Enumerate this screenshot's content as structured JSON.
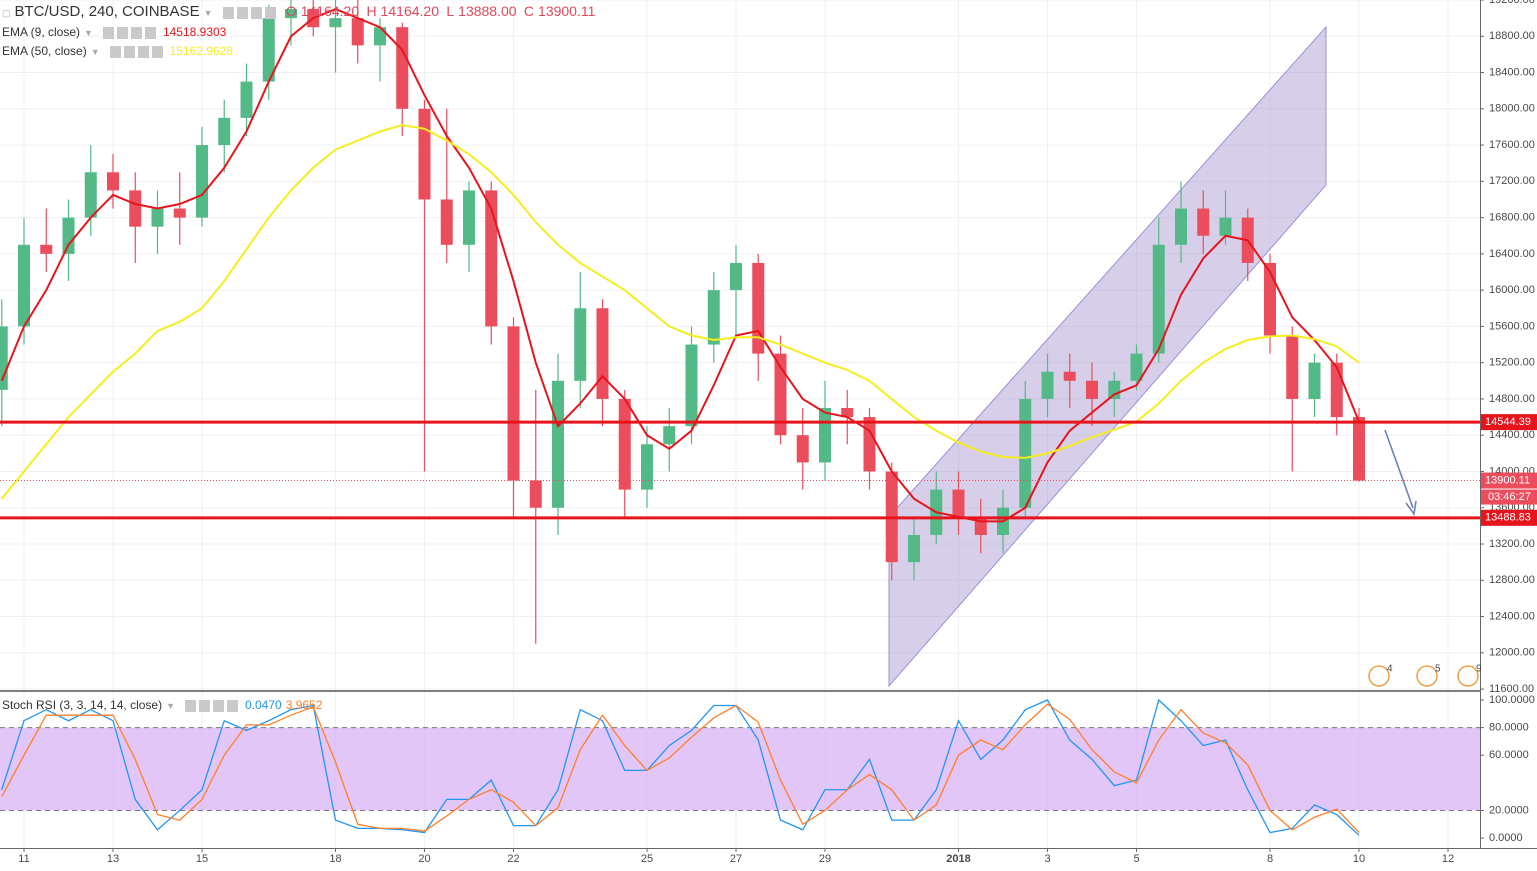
{
  "header": {
    "symbol": "BTC/USD, 240, COINBASE",
    "ohlc": [
      {
        "key": "O",
        "value": "14164.20"
      },
      {
        "key": "H",
        "value": "14164.20"
      },
      {
        "key": "L",
        "value": "13888.00"
      },
      {
        "key": "C",
        "value": "13900.11"
      }
    ]
  },
  "events": [
    "4",
    "5",
    "9"
  ],
  "chart_data": [
    {
      "type": "candlestick",
      "categories": [
        null,
        "11",
        null,
        null,
        null,
        "13",
        null,
        null,
        null,
        "15",
        null,
        null,
        null,
        null,
        null,
        "18",
        null,
        null,
        null,
        "20",
        null,
        null,
        null,
        "22",
        null,
        null,
        null,
        null,
        null,
        "25",
        null,
        null,
        null,
        "27",
        null,
        null,
        null,
        "29",
        null,
        null,
        null,
        null,
        null,
        "2018",
        null,
        null,
        null,
        "3",
        null,
        null,
        null,
        "5",
        null,
        null,
        null,
        null,
        null,
        "8",
        null,
        null,
        null,
        "10",
        null,
        null,
        null,
        "12"
      ],
      "open": [
        14900,
        15600,
        16500,
        16400,
        16800,
        17300,
        17100,
        16700,
        16900,
        16800,
        17600,
        17900,
        18300,
        19000,
        19100,
        18900,
        19000,
        18700,
        18900,
        18000,
        17000,
        16500,
        17100,
        15600,
        13900,
        13600,
        15000,
        15800,
        14800,
        13800,
        14300,
        14500,
        15400,
        16000,
        16300,
        15300,
        14400,
        14100,
        14700,
        14600,
        14000,
        13000,
        13300,
        13800,
        13500,
        13300,
        13600,
        14800,
        15100,
        15000,
        14800,
        15000,
        15300,
        16500,
        16900,
        16600,
        16800,
        16300,
        15500,
        14800,
        15200,
        14600,
        null,
        null,
        null,
        null
      ],
      "high": [
        15900,
        16800,
        16900,
        17000,
        17600,
        17500,
        17300,
        17100,
        17300,
        17800,
        18100,
        18500,
        19150,
        19200,
        19200,
        19200,
        19200,
        19000,
        18950,
        18100,
        18000,
        17200,
        17200,
        15700,
        14900,
        15300,
        16200,
        15900,
        14900,
        14500,
        14700,
        15600,
        16200,
        16500,
        16400,
        15500,
        14700,
        15000,
        14900,
        14700,
        14100,
        13500,
        14000,
        14000,
        13700,
        13800,
        15000,
        15300,
        15300,
        15200,
        15100,
        15400,
        16800,
        17200,
        17100,
        17100,
        16900,
        16400,
        15600,
        15300,
        15300,
        14700,
        null,
        null,
        null,
        null
      ],
      "low": [
        14500,
        15400,
        16200,
        16100,
        16600,
        16900,
        16300,
        16400,
        16500,
        16700,
        17300,
        17700,
        18100,
        18700,
        18800,
        18400,
        18500,
        18300,
        17700,
        14000,
        16300,
        16200,
        15400,
        13500,
        12100,
        13300,
        14700,
        14500,
        13500,
        13600,
        14000,
        14300,
        15200,
        15500,
        15000,
        14300,
        13800,
        13900,
        14300,
        13800,
        12800,
        12800,
        13200,
        13300,
        13100,
        13100,
        13500,
        14600,
        14700,
        14500,
        14600,
        14900,
        15200,
        16300,
        16400,
        16500,
        16100,
        15300,
        14000,
        14600,
        14400,
        13888,
        null,
        null,
        null,
        null
      ],
      "close": [
        15600,
        16500,
        16400,
        16800,
        17300,
        17100,
        16700,
        16900,
        16800,
        17600,
        17900,
        18300,
        19000,
        19100,
        18900,
        19000,
        18700,
        18900,
        18000,
        17000,
        16500,
        17100,
        15600,
        13900,
        13600,
        15000,
        15800,
        14800,
        13800,
        14300,
        14500,
        15400,
        16000,
        16300,
        15300,
        14400,
        14100,
        14700,
        14600,
        14000,
        13000,
        13300,
        13800,
        13500,
        13300,
        13600,
        14800,
        15100,
        15000,
        14800,
        15000,
        15300,
        16500,
        16900,
        16600,
        16800,
        16300,
        15500,
        14800,
        15200,
        14600,
        13900.11,
        null,
        null,
        null,
        null
      ],
      "up_color": "#53b987",
      "down_color": "#eb4d5c",
      "series": [
        {
          "name": "EMA (9, close)",
          "color": "#e8141c",
          "legend_value": "14518.9303",
          "values": [
            15000,
            15600,
            16000,
            16500,
            16800,
            17050,
            16950,
            16900,
            16950,
            17050,
            17350,
            17750,
            18300,
            18800,
            19000,
            19100,
            19000,
            18900,
            18650,
            18150,
            17700,
            17350,
            16900,
            16100,
            15200,
            14500,
            14750,
            15050,
            14800,
            14400,
            14250,
            14450,
            14950,
            15500,
            15550,
            15150,
            14800,
            14650,
            14600,
            14450,
            14000,
            13700,
            13550,
            13500,
            13450,
            13450,
            13600,
            14100,
            14450,
            14650,
            14850,
            14950,
            15350,
            15950,
            16350,
            16600,
            16550,
            16200,
            15700,
            15450,
            15150,
            14550,
            null,
            null,
            null,
            null
          ]
        },
        {
          "name": "EMA (50, close)",
          "color": "#f5ee1f",
          "legend_value": "15162.9628",
          "values": [
            13700,
            14000,
            14300,
            14600,
            14850,
            15100,
            15300,
            15550,
            15650,
            15800,
            16100,
            16450,
            16800,
            17100,
            17350,
            17550,
            17650,
            17750,
            17820,
            17780,
            17650,
            17500,
            17300,
            17050,
            16750,
            16500,
            16300,
            16150,
            16000,
            15800,
            15600,
            15500,
            15450,
            15480,
            15480,
            15400,
            15300,
            15200,
            15120,
            15000,
            14800,
            14600,
            14450,
            14320,
            14220,
            14160,
            14150,
            14200,
            14280,
            14380,
            14460,
            14550,
            14750,
            15000,
            15200,
            15350,
            15450,
            15490,
            15500,
            15460,
            15380,
            15200,
            null,
            null,
            null,
            null
          ]
        }
      ],
      "levels": [
        {
          "value": 14544.39,
          "color": "#e8141c"
        },
        {
          "value": 13488.83,
          "color": "#e8141c"
        }
      ],
      "last_price": 13900.11,
      "countdown": "03:46:27",
      "ylim": [
        11590,
        19200
      ],
      "yticks": [
        {
          "value": 11600,
          "label": "11600.00"
        },
        {
          "value": 12000,
          "label": "12000.00"
        },
        {
          "value": 12400,
          "label": "12400.00"
        },
        {
          "value": 12800,
          "label": "12800.00"
        },
        {
          "value": 13200,
          "label": "13200.00"
        },
        {
          "value": 13600,
          "label": "13600.00"
        },
        {
          "value": 14000,
          "label": "14000.00"
        },
        {
          "value": 14400,
          "label": "14400.00"
        },
        {
          "value": 14800,
          "label": "14800.00"
        },
        {
          "value": 15200,
          "label": "15200.00"
        },
        {
          "value": 15600,
          "label": "15600.00"
        },
        {
          "value": 16000,
          "label": "16000.00"
        },
        {
          "value": 16400,
          "label": "16400.00"
        },
        {
          "value": 16800,
          "label": "16800.00"
        },
        {
          "value": 17200,
          "label": "17200.00"
        },
        {
          "value": 17600,
          "label": "17600.00"
        },
        {
          "value": 18000,
          "label": "18000.00"
        },
        {
          "value": 18400,
          "label": "18400.00"
        },
        {
          "value": 18800,
          "label": "18800.00"
        },
        {
          "value": 19200,
          "label": "19200.00"
        }
      ],
      "grid": true
    },
    {
      "type": "line",
      "title": "Stoch RSI (3, 3, 14, 14, close)",
      "series": [
        {
          "color": "#2196f3",
          "legend_value": "0.0470",
          "values": [
            35,
            85,
            93,
            85,
            93,
            85,
            28,
            6,
            20,
            35,
            85,
            78,
            85,
            93,
            96,
            13,
            7,
            7,
            6,
            4,
            28,
            28,
            42,
            9,
            9,
            35,
            93,
            85,
            49,
            49,
            67,
            78,
            96,
            96,
            71,
            13,
            6,
            35,
            35,
            57,
            13,
            13,
            35,
            85,
            57,
            71,
            93,
            100,
            71,
            57,
            38,
            42,
            100,
            85,
            67,
            71,
            35,
            4,
            7,
            24,
            17,
            2,
            null,
            null,
            null,
            null
          ]
        },
        {
          "color": "#ff7f2a",
          "legend_value": "3.9652",
          "values": [
            30,
            60,
            89,
            89,
            89,
            89,
            57,
            17,
            13,
            28,
            60,
            82,
            82,
            89,
            95,
            55,
            10,
            7,
            7,
            5,
            16,
            28,
            35,
            26,
            9,
            22,
            64,
            89,
            67,
            49,
            58,
            73,
            87,
            96,
            84,
            42,
            10,
            20,
            35,
            46,
            35,
            13,
            24,
            60,
            71,
            64,
            82,
            97,
            86,
            64,
            48,
            40,
            71,
            93,
            76,
            69,
            53,
            20,
            6,
            15,
            21,
            4,
            null,
            null,
            null,
            null
          ]
        }
      ],
      "band": [
        20,
        80
      ],
      "band_color": "#d9b3f5",
      "ylim": [
        -7.2,
        105.8
      ],
      "yticks": [
        {
          "value": 100,
          "label": "100.0000"
        },
        {
          "value": 80,
          "label": "80.0000"
        },
        {
          "value": 60,
          "label": "60.0000"
        },
        {
          "value": 20,
          "label": "20.0000"
        },
        {
          "value": 0,
          "label": "0.0000"
        }
      ],
      "grid": false
    }
  ]
}
